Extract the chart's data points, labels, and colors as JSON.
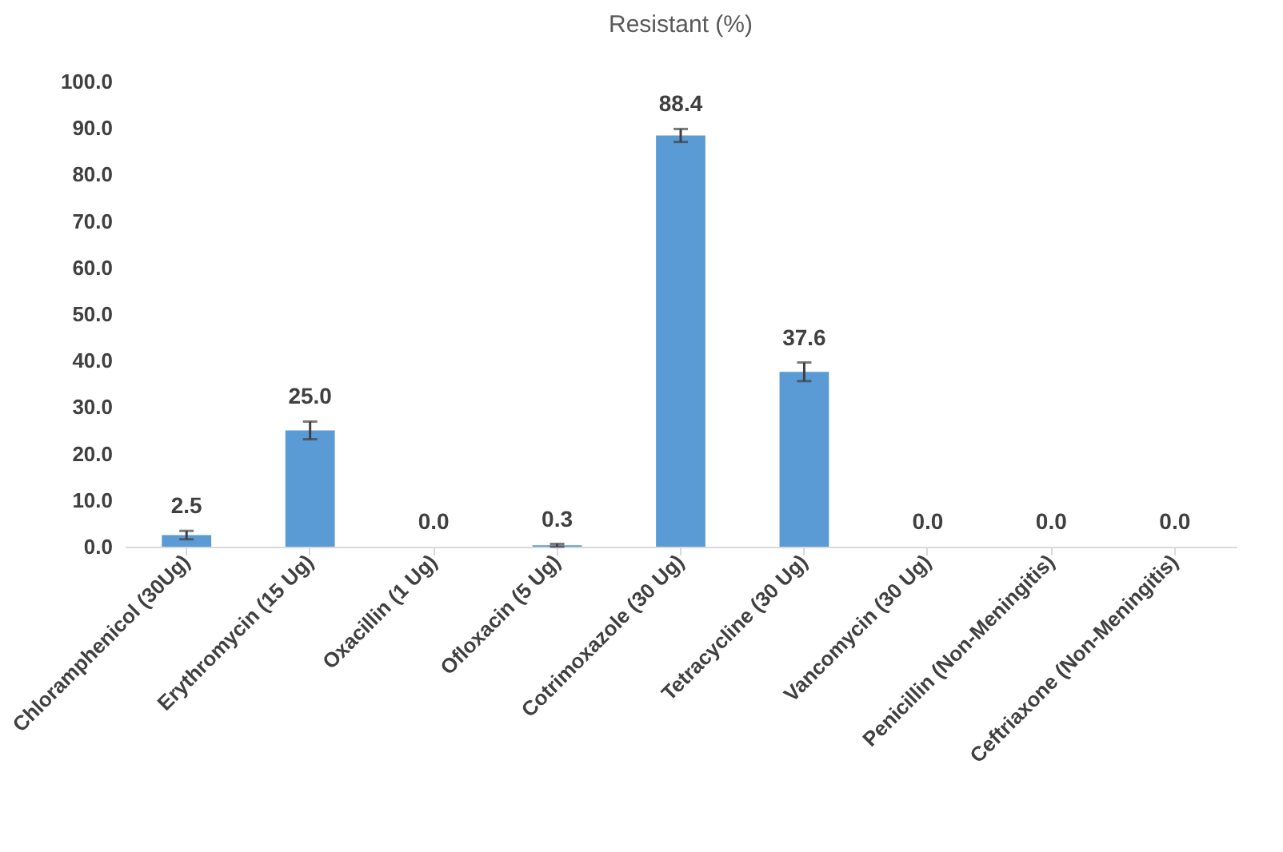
{
  "chart_data": {
    "type": "bar",
    "title": "Resistant (%)",
    "categories": [
      "Chloramphenicol (30Ug)",
      "Erythromycin (15 Ug)",
      "Oxacillin (1 Ug)",
      "Ofloxacin (5 Ug)",
      "Cotrimoxazole (30 Ug)",
      "Tetracycline (30 Ug)",
      "Vancomycin (30 Ug)",
      "Penicillin (Non-Meningitis)",
      "Ceftriaxone (Non-Meningitis)"
    ],
    "values": [
      2.5,
      25.0,
      0.0,
      0.3,
      88.4,
      37.6,
      0.0,
      0.0,
      0.0
    ],
    "errors": [
      0.9,
      1.9,
      null,
      0.3,
      1.4,
      2.0,
      null,
      null,
      null
    ],
    "value_labels": [
      "2.5",
      "25.0",
      "0.0",
      "0.3",
      "88.4",
      "37.6",
      "0.0",
      "0.0",
      "0.0"
    ],
    "color": "#5b9bd5",
    "ylim": [
      0,
      100
    ],
    "yticks": [
      {
        "value": 0,
        "label": "0.0"
      },
      {
        "value": 10,
        "label": "10.0"
      },
      {
        "value": 20,
        "label": "20.0"
      },
      {
        "value": 30,
        "label": "30.0"
      },
      {
        "value": 40,
        "label": "40.0"
      },
      {
        "value": 50,
        "label": "50.0"
      },
      {
        "value": 60,
        "label": "60.0"
      },
      {
        "value": 70,
        "label": "70.0"
      },
      {
        "value": 80,
        "label": "80.0"
      },
      {
        "value": 90,
        "label": "90.0"
      },
      {
        "value": 100,
        "label": "100.0"
      }
    ],
    "grid": false
  }
}
